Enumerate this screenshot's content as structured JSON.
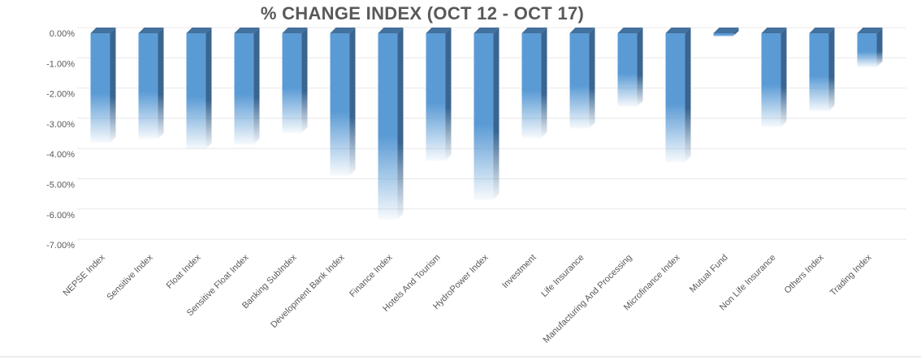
{
  "chart_data": {
    "type": "bar",
    "title": "% CHANGE INDEX (OCT 12 - OCT 17)",
    "xlabel": "",
    "ylabel": "",
    "ylim": [
      -7,
      0
    ],
    "yticks": [
      "0.00%",
      "-1.00%",
      "-2.00%",
      "-3.00%",
      "-4.00%",
      "-5.00%",
      "-6.00%",
      "-7.00%"
    ],
    "grid": true,
    "style": "3d-column-gradient",
    "bar_color": "#5B9BD5",
    "bar_side_color": "#3A6590",
    "categories": [
      "NEPSE Index",
      "Sensitive Index",
      "Float Index",
      "Sensitive Float Index",
      "Banking SubIndex",
      "Development Bank Index",
      "Finance Index",
      "Hotels And Tourism",
      "HydroPower Index",
      "Investment",
      "Life Insurance",
      "Manufacturing And Processing",
      "Microfinance Index",
      "Mutual Fund",
      "Non Life Insurance",
      "Others Index",
      "Trading Index"
    ],
    "values": [
      -3.62,
      -3.5,
      -3.82,
      -3.68,
      -3.3,
      -4.71,
      -6.16,
      -4.22,
      -5.51,
      -3.46,
      -3.15,
      -2.43,
      -4.26,
      -0.11,
      -3.1,
      -2.58,
      -1.12
    ]
  }
}
